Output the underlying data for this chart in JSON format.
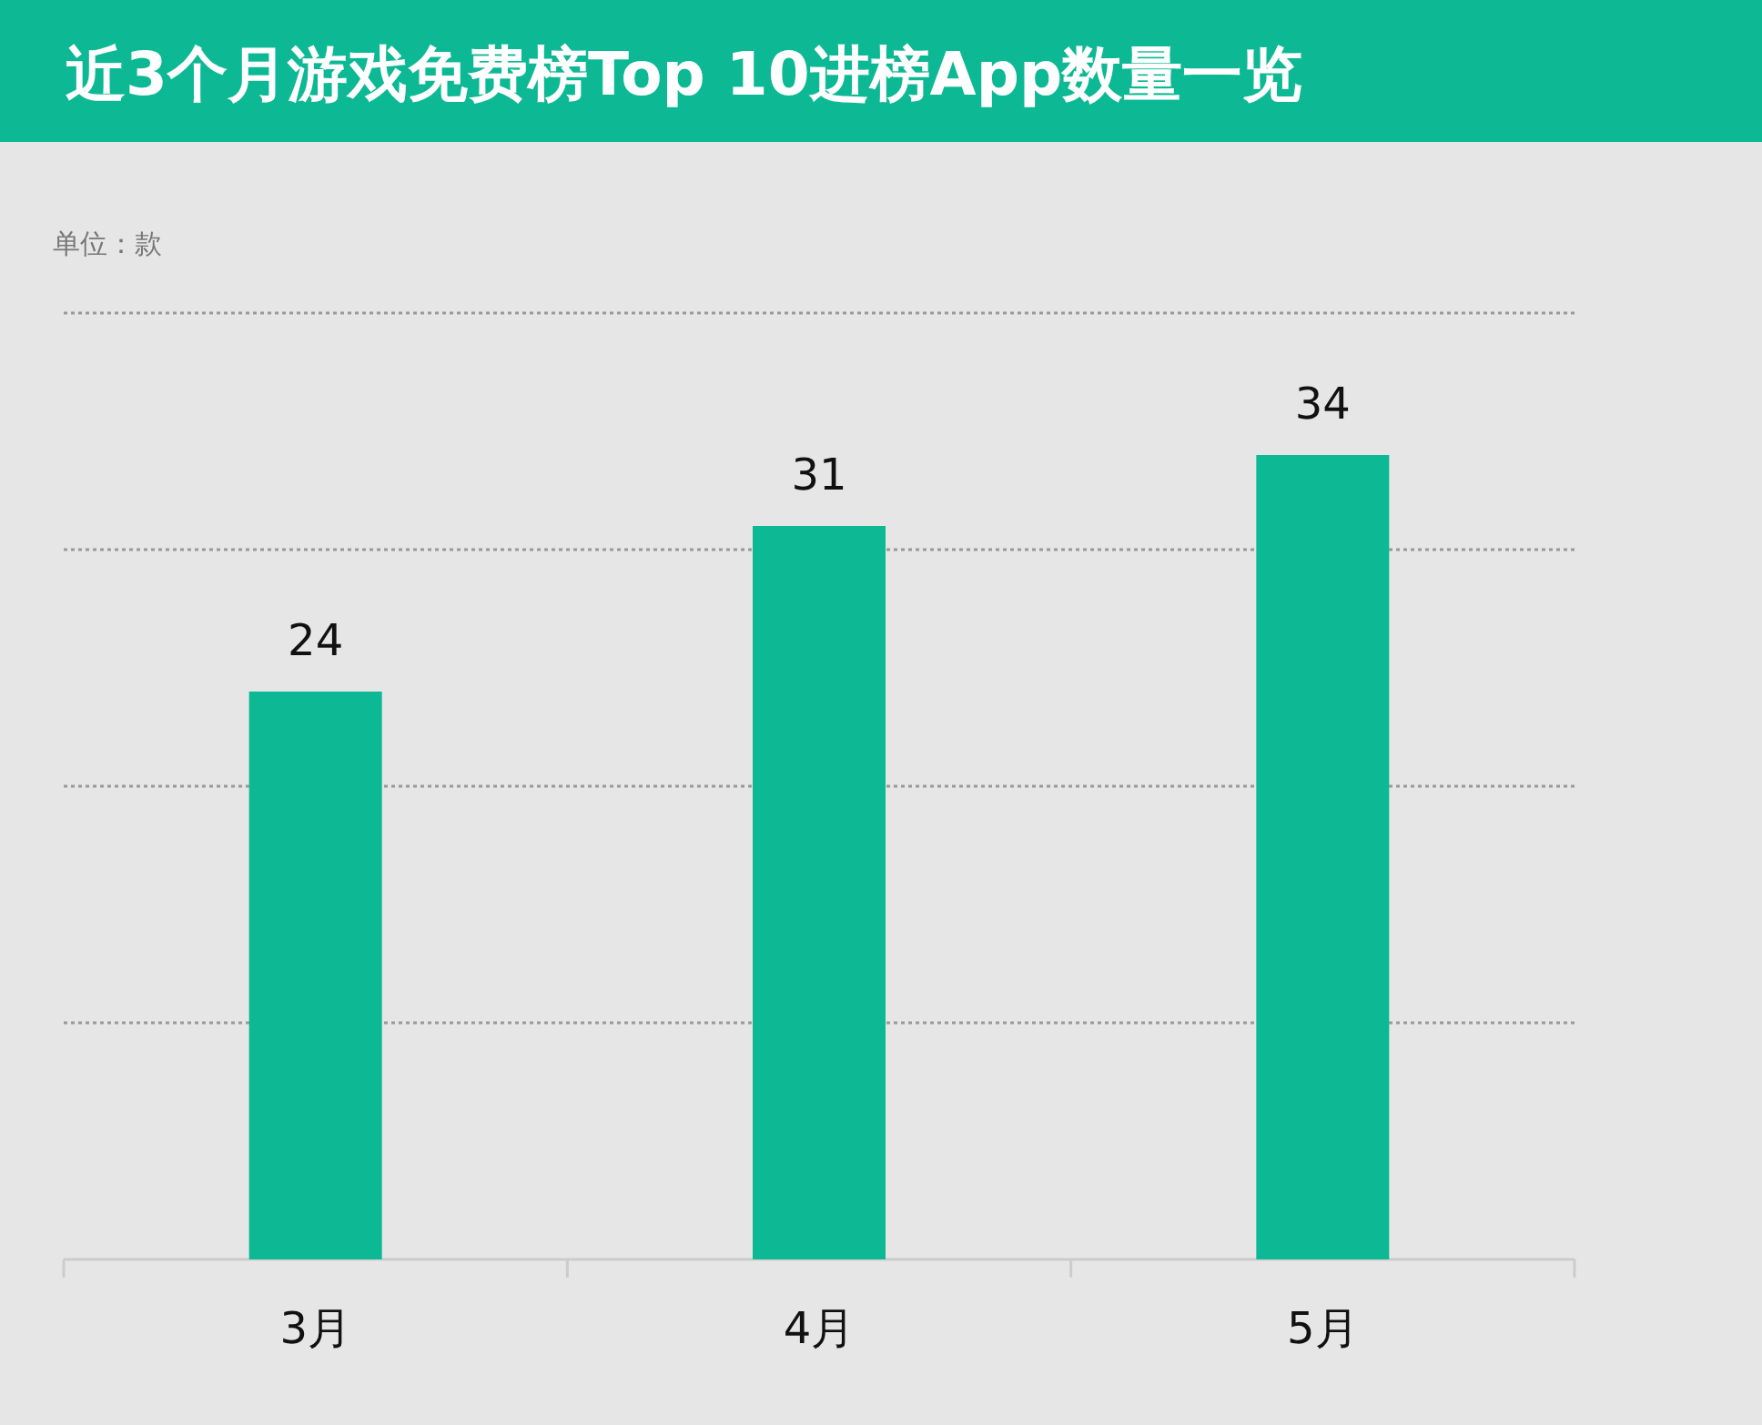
{
  "chart_data": {
    "type": "bar",
    "title": "近3个月游戏免费榜Top 10进榜App数量一览",
    "annotations": [
      "单位：款"
    ],
    "categories": [
      "3月",
      "4月",
      "5月"
    ],
    "values": [
      24,
      31,
      34
    ],
    "color": "#0cb994",
    "ylim": [
      0,
      40
    ],
    "yticks": [
      {
        "value": 10,
        "label": null
      },
      {
        "value": 20,
        "label": null
      },
      {
        "value": 30,
        "label": null
      },
      {
        "value": 40,
        "label": null
      }
    ],
    "tick_labels": "x",
    "grid": "y",
    "data_labels": true
  }
}
